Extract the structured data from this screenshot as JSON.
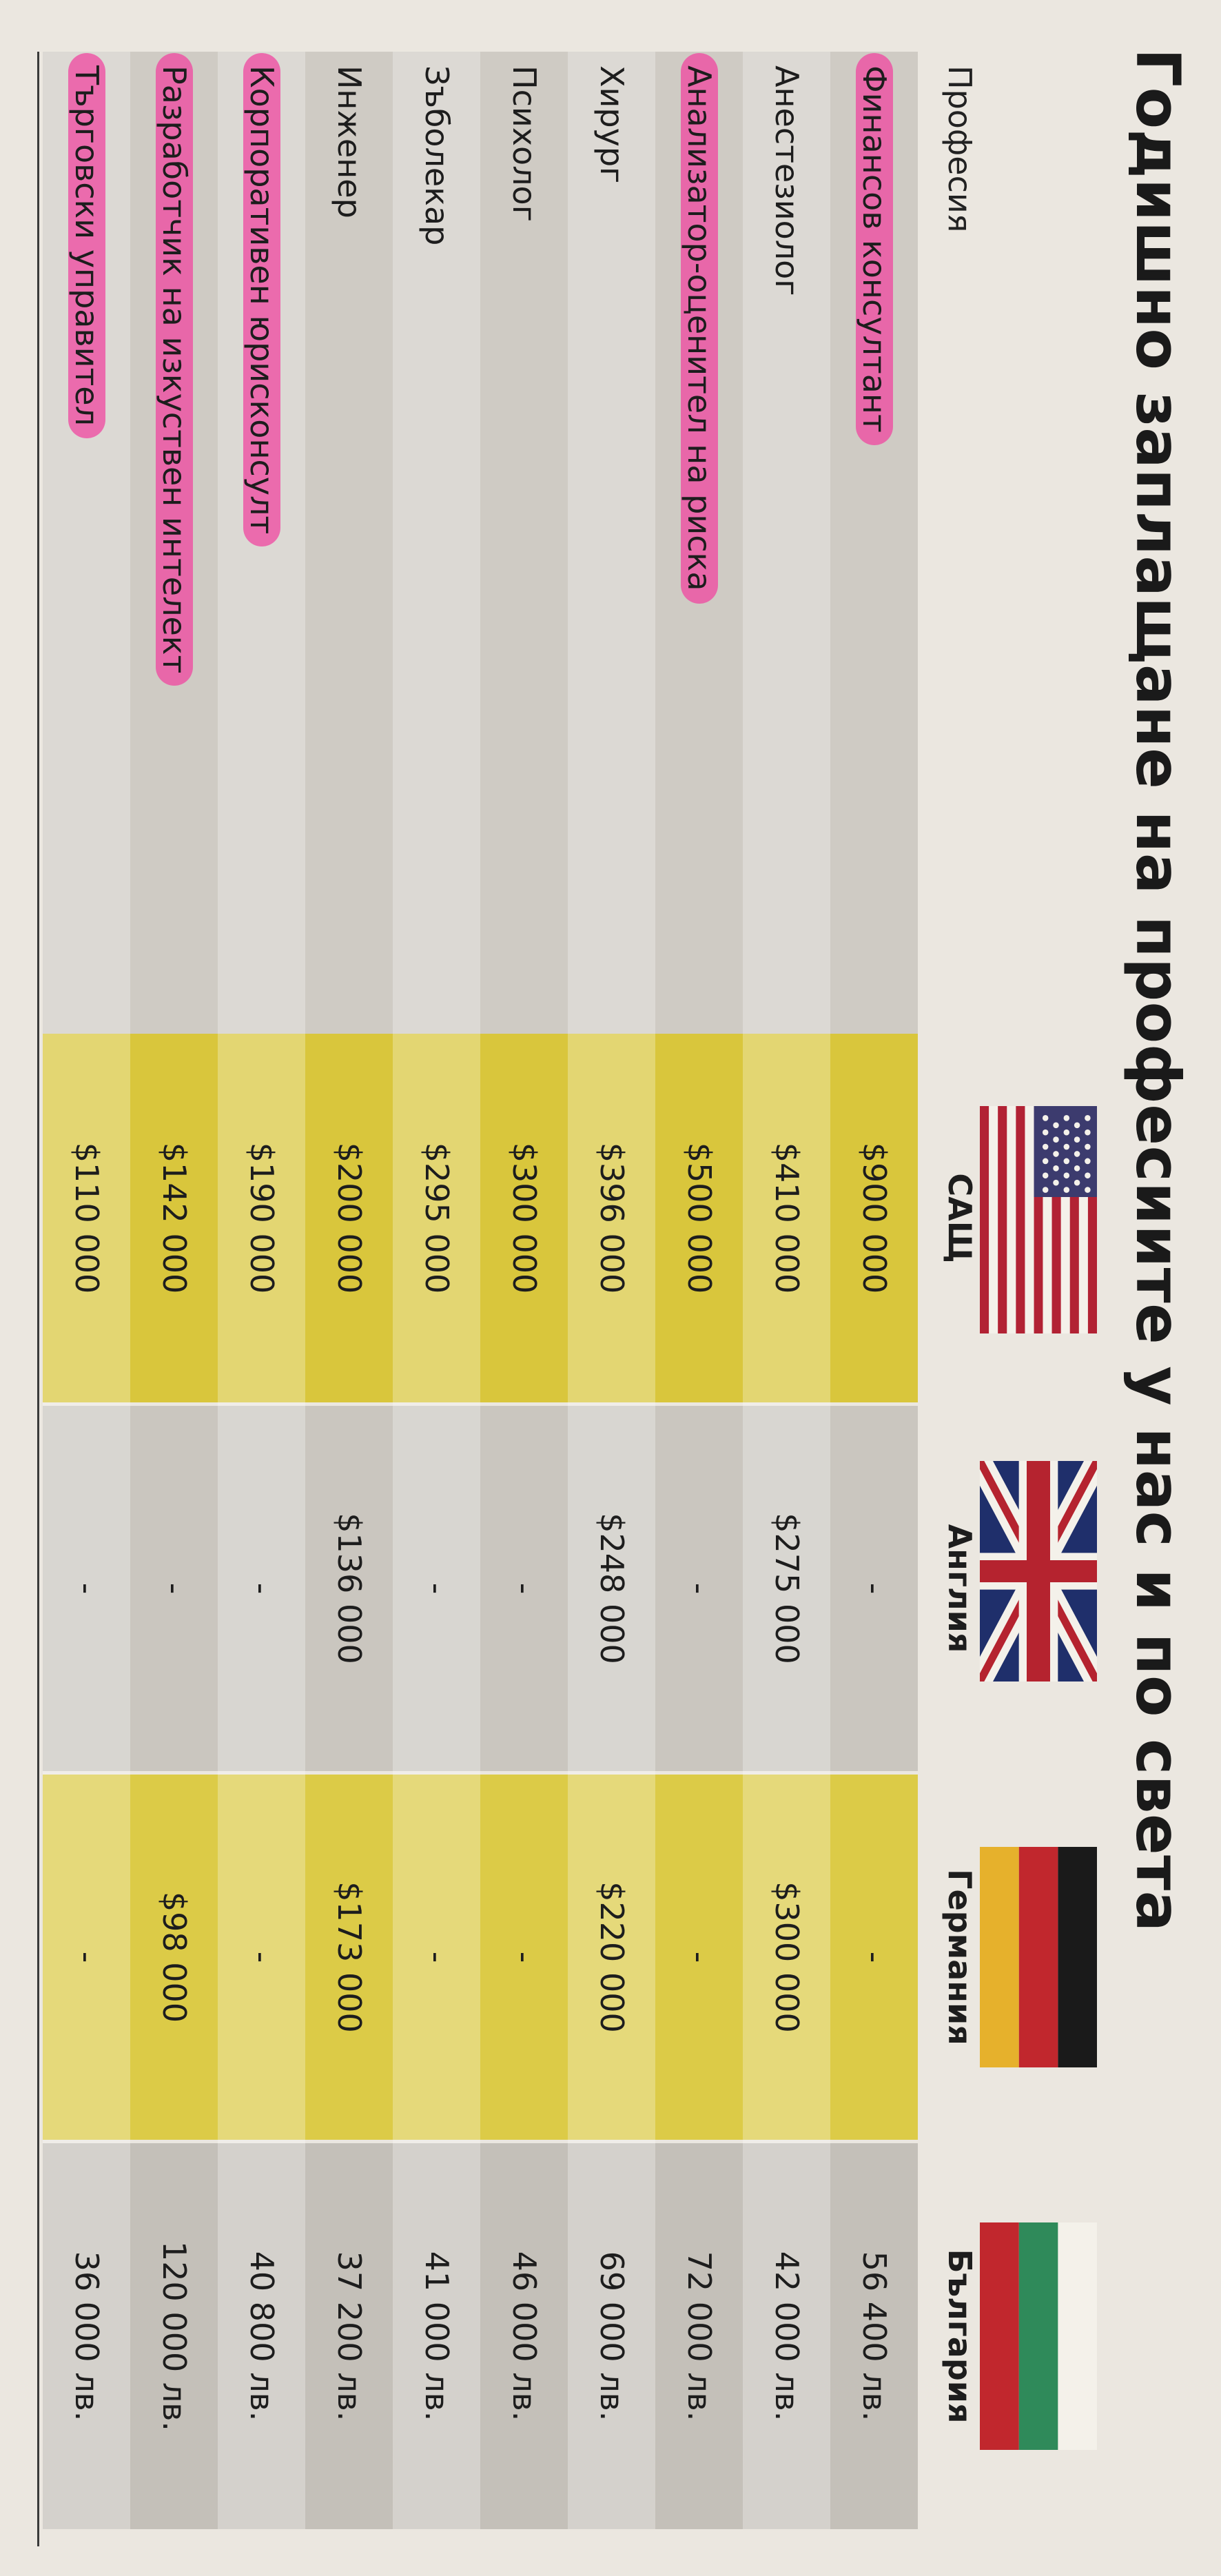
{
  "title": "Годишно заплащане на професиите у нас и по света",
  "columns": {
    "profession": "Професия",
    "usa": "САЩ",
    "uk": "Англия",
    "germany": "Германия",
    "bulgaria": "България"
  },
  "flags": [
    "usa-flag",
    "uk-flag",
    "germany-flag",
    "bulgaria-flag"
  ],
  "rows": [
    {
      "profession": "Финансов консултант",
      "usa": "$900 000",
      "uk": "-",
      "germany": "-",
      "bulgaria": "56 400 лв.",
      "highlighted": true
    },
    {
      "profession": "Анестезиолог",
      "usa": "$410 000",
      "uk": "$275 000",
      "germany": "$300 000",
      "bulgaria": "42 000 лв.",
      "highlighted": false
    },
    {
      "profession": "Анализатор-оценител на риска",
      "usa": "$500 000",
      "uk": "-",
      "germany": "-",
      "bulgaria": "72 000 лв.",
      "highlighted": true
    },
    {
      "profession": "Хирург",
      "usa": "$396 000",
      "uk": "$248 000",
      "germany": "$220 000",
      "bulgaria": "69 000 лв.",
      "highlighted": false
    },
    {
      "profession": "Психолог",
      "usa": "$300 000",
      "uk": "-",
      "germany": "-",
      "bulgaria": "46 000 лв.",
      "highlighted": false
    },
    {
      "profession": "Зъболекар",
      "usa": "$295 000",
      "uk": "-",
      "germany": "-",
      "bulgaria": "41 000 лв.",
      "highlighted": false
    },
    {
      "profession": "Инженер",
      "usa": "$200 000",
      "uk": "$136 000",
      "germany": "$173 000",
      "bulgaria": "37 200 лв.",
      "highlighted": false
    },
    {
      "profession": "Корпоративен юрисконсулт",
      "usa": "$190 000",
      "uk": "-",
      "germany": "-",
      "bulgaria": "40 800 лв.",
      "highlighted": true
    },
    {
      "profession": "Разработчик на изкуствен интелект",
      "usa": "$142 000",
      "uk": "-",
      "germany": "$98 000",
      "bulgaria": "120 000 лв.",
      "highlighted": true
    },
    {
      "profession": "Търговски управител",
      "usa": "$110 000",
      "uk": "-",
      "germany": "-",
      "bulgaria": "36 000 лв.",
      "highlighted": true
    }
  ],
  "colors": {
    "highlighter": "#f046a0",
    "usa_column": "#d9c63c",
    "germany_column": "#dccb47",
    "neutral_column": "#cac6bf"
  }
}
